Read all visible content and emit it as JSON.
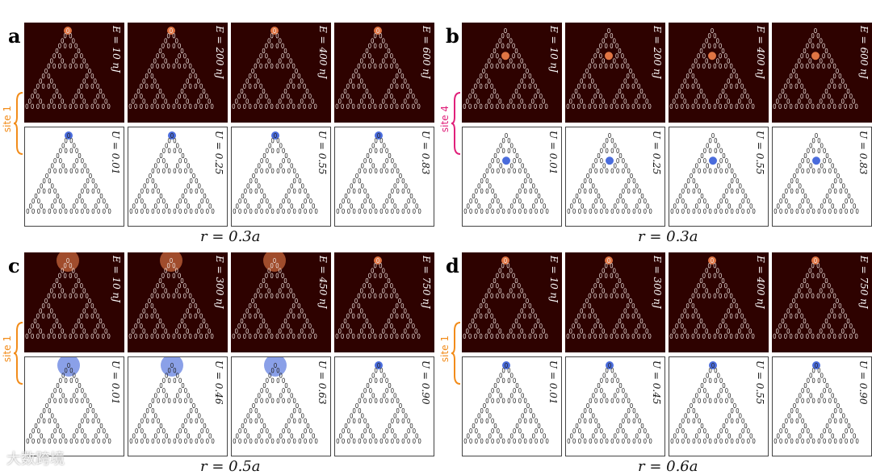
{
  "panels": [
    {
      "letter": "a",
      "radius_label": "r = 0.3a",
      "site_label": "site 1",
      "site_color": "#f28c1a",
      "structure": "gen3",
      "top_labels": [
        "E = 10 nJ",
        "E = 200 nJ",
        "E = 400 nJ",
        "E = 600 nJ"
      ],
      "bottom_labels": [
        "U = 0.01",
        "U = 0.25",
        "U = 0.55",
        "U = 0.83"
      ]
    },
    {
      "letter": "b",
      "radius_label": "r = 0.3a",
      "site_label": "site 4",
      "site_color": "#e0207a",
      "structure": "gen3",
      "top_labels": [
        "E = 10 nJ",
        "E = 200 nJ",
        "E = 400 nJ",
        "E = 600 nJ"
      ],
      "bottom_labels": [
        "U = 0.01",
        "U = 0.25",
        "U = 0.55",
        "U = 0.83"
      ]
    },
    {
      "letter": "c",
      "radius_label": "r = 0.5a",
      "site_label": "site 1",
      "site_color": "#f28c1a",
      "structure": "gen3",
      "top_labels": [
        "E = 10 nJ",
        "E = 300 nJ",
        "E = 450 nJ",
        "E = 750 nJ"
      ],
      "bottom_labels": [
        "U = 0.01",
        "U = 0.46",
        "U = 0.63",
        "U = 0.90"
      ]
    },
    {
      "letter": "d",
      "radius_label": "r = 0.6a",
      "site_label": "site 1",
      "site_color": "#f28c1a",
      "structure": "gen3",
      "top_labels": [
        "E = 10 nJ",
        "E = 300 nJ",
        "E = 400 nJ",
        "E = 750 nJ"
      ],
      "bottom_labels": [
        "U = 0.01",
        "U = 0.45",
        "U = 0.55",
        "U = 0.90"
      ]
    }
  ],
  "watermark": "大数跨境",
  "colors": {
    "dark_bg": "#2e0200",
    "glow_top": "#ff8a50",
    "glow_bottom": "#2a52d6",
    "ring_dark": "#f0e6e2",
    "ring_light": "#222222"
  }
}
